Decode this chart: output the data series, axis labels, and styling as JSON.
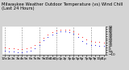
{
  "title": "Milwaukee Weather Outdoor Temperature (vs) Wind Chill (Last 24 Hours)",
  "bg_color": "#d4d4d4",
  "plot_bg": "#ffffff",
  "temp_color": "#ff0000",
  "windchill_color": "#0000dd",
  "temp_values": [
    5,
    4,
    3,
    2,
    2,
    3,
    5,
    10,
    18,
    26,
    33,
    38,
    41,
    43,
    44,
    43,
    40,
    34,
    27,
    22,
    19,
    18,
    17,
    16
  ],
  "windchill_values": [
    -2,
    -3,
    -4,
    -5,
    -5,
    -4,
    -2,
    3,
    11,
    20,
    27,
    33,
    37,
    39,
    40,
    38,
    34,
    27,
    19,
    14,
    11,
    10,
    9,
    8
  ],
  "ylim": [
    -10,
    50
  ],
  "yticks": [
    -10,
    -5,
    0,
    5,
    10,
    15,
    20,
    25,
    30,
    35,
    40,
    45,
    50
  ],
  "ytick_labels": [
    "-10",
    "-5",
    "0",
    "5",
    "10",
    "15",
    "20",
    "25",
    "30",
    "35",
    "40",
    "45",
    "50"
  ],
  "n_points": 24,
  "vgrid_every": 4,
  "title_fontsize": 3.8,
  "tick_fontsize": 3.0,
  "marker_size": 1.5
}
